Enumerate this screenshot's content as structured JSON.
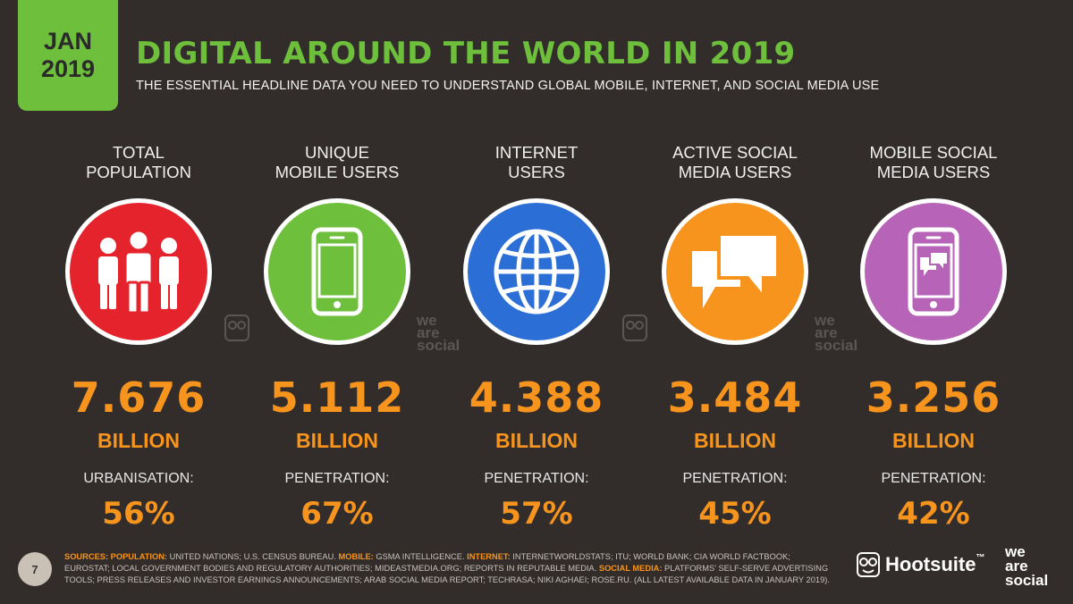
{
  "badge": {
    "line1": "JAN",
    "line2": "2019"
  },
  "title": "DIGITAL AROUND THE WORLD IN 2019",
  "subtitle": "THE ESSENTIAL HEADLINE DATA YOU NEED TO UNDERSTAND GLOBAL MOBILE, INTERNET, AND SOCIAL MEDIA USE",
  "colors": {
    "green": "#6dbf3c",
    "orange": "#f7941d",
    "red": "#e5232c",
    "blue": "#2b6fd6",
    "amber": "#f7941d",
    "purple": "#b663b8",
    "background": "#322d2b"
  },
  "stats": [
    {
      "label_line1": "TOTAL",
      "label_line2": "POPULATION",
      "icon": "people-icon",
      "value": "7.676",
      "unit": "BILLION",
      "sub_label": "URBANISATION:",
      "percent": "56%"
    },
    {
      "label_line1": "UNIQUE",
      "label_line2": "MOBILE USERS",
      "icon": "mobile-phone-icon",
      "value": "5.112",
      "unit": "BILLION",
      "sub_label": "PENETRATION:",
      "percent": "67%"
    },
    {
      "label_line1": "INTERNET",
      "label_line2": "USERS",
      "icon": "globe-icon",
      "value": "4.388",
      "unit": "BILLION",
      "sub_label": "PENETRATION:",
      "percent": "57%"
    },
    {
      "label_line1": "ACTIVE SOCIAL",
      "label_line2": "MEDIA USERS",
      "icon": "chat-bubbles-icon",
      "value": "3.484",
      "unit": "BILLION",
      "sub_label": "PENETRATION:",
      "percent": "45%"
    },
    {
      "label_line1": "MOBILE SOCIAL",
      "label_line2": "MEDIA USERS",
      "icon": "mobile-chat-icon",
      "value": "3.256",
      "unit": "BILLION",
      "sub_label": "PENETRATION:",
      "percent": "42%"
    }
  ],
  "watermarks": {
    "we": "we",
    "are": "are",
    "social": "social"
  },
  "footer": {
    "page_number": "7",
    "sources_key": "SOURCES:",
    "population_key": "POPULATION:",
    "population_text": " UNITED NATIONS; U.S. CENSUS BUREAU. ",
    "mobile_key": "MOBILE:",
    "mobile_text": " GSMA INTELLIGENCE. ",
    "internet_key": "INTERNET:",
    "internet_text": " INTERNETWORLDSTATS; ITU; WORLD BANK; CIA WORLD FACTBOOK; EUROSTAT; LOCAL GOVERNMENT BODIES AND REGULATORY AUTHORITIES; MIDEASTMEDIA.ORG; REPORTS IN REPUTABLE MEDIA. ",
    "social_key": "SOCIAL MEDIA:",
    "social_text": " PLATFORMS’ SELF-SERVE ADVERTISING TOOLS; PRESS RELEASES AND INVESTOR EARNINGS ANNOUNCEMENTS; ARAB SOCIAL MEDIA REPORT; TECHRASA; NIKI AGHAEI; ROSE.RU. (ALL LATEST AVAILABLE DATA IN JANUARY 2019).",
    "hootsuite": "Hootsuite",
    "trademark": "™",
    "was_we": "we",
    "was_are": "are",
    "was_social": "social"
  }
}
